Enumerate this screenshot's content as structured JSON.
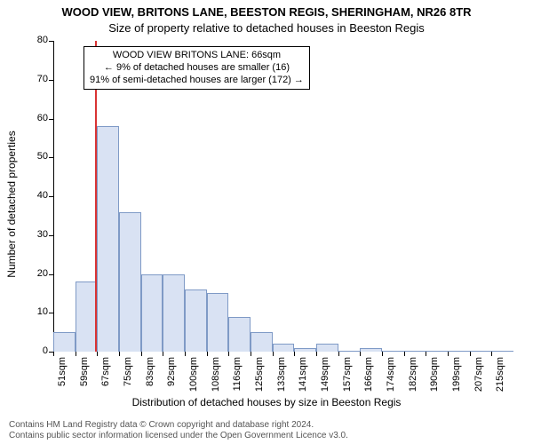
{
  "title_main": "WOOD VIEW, BRITONS LANE, BEESTON REGIS, SHERINGHAM, NR26 8TR",
  "title_sub": "Size of property relative to detached houses in Beeston Regis",
  "ylabel": "Number of detached properties",
  "xlabel": "Distribution of detached houses by size in Beeston Regis",
  "footer_line1": "Contains HM Land Registry data © Crown copyright and database right 2024.",
  "footer_line2": "Contains public sector information licensed under the Open Government Licence v3.0.",
  "chart": {
    "type": "histogram",
    "background_color": "#ffffff",
    "bar_fill": "#d9e2f3",
    "bar_stroke": "#7f9ac6",
    "bar_stroke_width": 1,
    "marker_color": "#d93333",
    "ylim": [
      0,
      80
    ],
    "ytick_step": 10,
    "yticks": [
      0,
      10,
      20,
      30,
      40,
      50,
      60,
      70,
      80
    ],
    "xlabels": [
      "51sqm",
      "59sqm",
      "67sqm",
      "75sqm",
      "83sqm",
      "92sqm",
      "100sqm",
      "108sqm",
      "116sqm",
      "125sqm",
      "133sqm",
      "141sqm",
      "149sqm",
      "157sqm",
      "166sqm",
      "174sqm",
      "182sqm",
      "190sqm",
      "199sqm",
      "207sqm",
      "215sqm"
    ],
    "xlabel_fontsize": 11,
    "ylabel_fontsize": 11,
    "values": [
      5,
      18,
      58,
      36,
      20,
      20,
      16,
      15,
      9,
      5,
      2,
      1,
      2,
      0,
      1,
      0,
      0,
      0,
      0,
      0,
      0
    ],
    "marker_value": 66,
    "marker_bin_start": 67,
    "annotation": {
      "line1": "WOOD VIEW BRITONS LANE: 66sqm",
      "line2": "← 9% of detached houses are smaller (16)",
      "line3": "91% of semi-detached houses are larger (172) →"
    }
  }
}
